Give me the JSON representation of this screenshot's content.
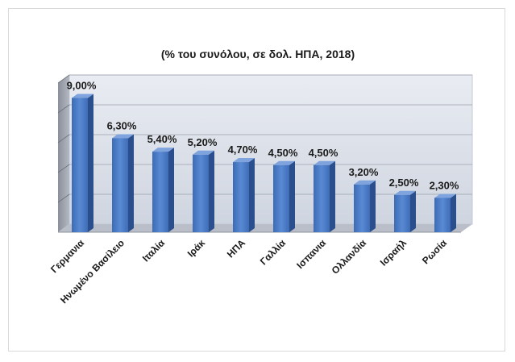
{
  "chart_data": {
    "type": "bar",
    "title": "(% του συνόλου, σε δολ. ΗΠΑ, 2018)",
    "xlabel": "",
    "ylabel": "",
    "ylim": [
      0,
      10
    ],
    "grid": true,
    "categories": [
      "Γερμανια",
      "Ηνωμένο Βασίλειο",
      "Ιταλία",
      "Ιράκ",
      "ΗΠΑ",
      "Γαλλία",
      "Ισπανια",
      "Ολλανδία",
      "Ισραήλ",
      "Ρωσία"
    ],
    "values": [
      9.0,
      6.3,
      5.4,
      5.2,
      4.7,
      4.5,
      4.5,
      3.2,
      2.5,
      2.3
    ],
    "data_labels": [
      "9,00%",
      "6,30%",
      "5,40%",
      "5,20%",
      "4,70%",
      "4,50%",
      "4,50%",
      "3,20%",
      "2,50%",
      "2,30%"
    ],
    "colors": {
      "bar_front": "#4f7fc9",
      "bar_side": "#2b4f8c",
      "bar_top": "#7fa3dd",
      "wall": "#dde2ec",
      "floor": "#b9bec8",
      "grid": "#9aa0ab"
    }
  }
}
